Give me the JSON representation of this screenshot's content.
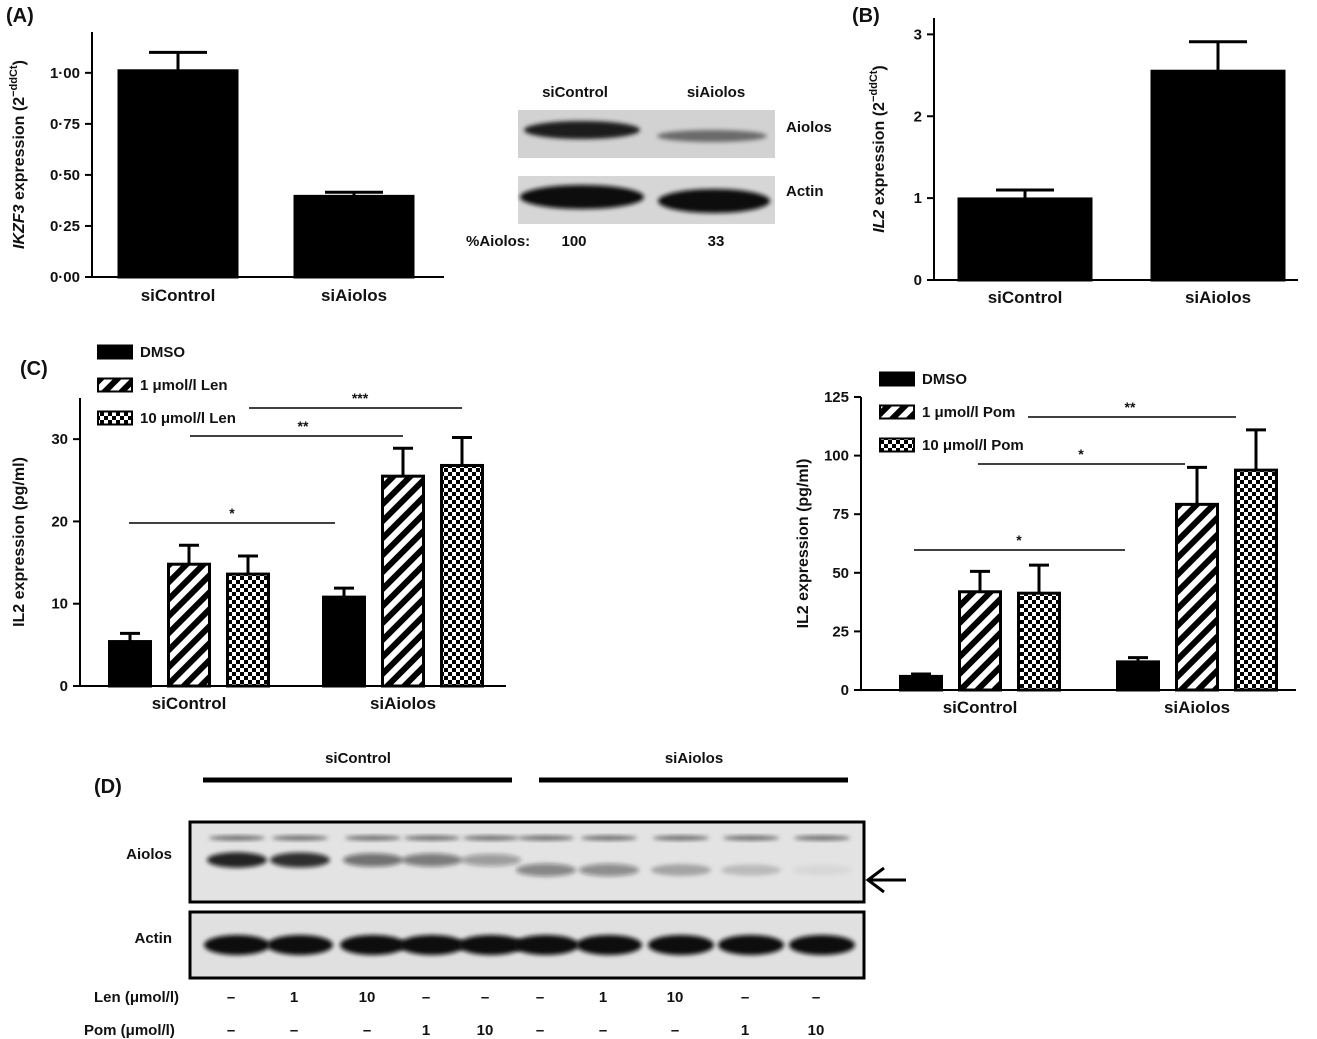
{
  "panels": {
    "A": "(A)",
    "B": "(B)",
    "C": "(C)",
    "D": "(D)"
  },
  "chart_data": [
    {
      "id": "A",
      "type": "bar",
      "ylabel_italic": "IKZF3",
      "ylabel_rest": " expression (2",
      "ylabel_sup": "−ddCt",
      "ylabel_close": ")",
      "ylim": [
        0,
        1.2
      ],
      "yticks": [
        "0·00",
        "0·25",
        "0·50",
        "0·75",
        "1·00"
      ],
      "ytick_values": [
        0,
        0.25,
        0.5,
        0.75,
        1.0
      ],
      "categories": [
        "siControl",
        "siAiolos"
      ],
      "values": [
        1.01,
        0.395
      ],
      "errors": [
        0.09,
        0.02
      ]
    },
    {
      "id": "B",
      "type": "bar",
      "ylabel_italic": "IL2",
      "ylabel_rest": " expression  (2",
      "ylabel_sup": "−ddCt",
      "ylabel_close": ")",
      "ylim": [
        0,
        3.2
      ],
      "yticks": [
        "0",
        "1",
        "2",
        "3"
      ],
      "ytick_values": [
        0,
        1,
        2,
        3
      ],
      "categories": [
        "siControl",
        "siAiolos"
      ],
      "values": [
        0.99,
        2.55
      ],
      "errors": [
        0.11,
        0.36
      ]
    },
    {
      "id": "C-len",
      "type": "bar",
      "ylabel": "IL2 expression (pg/ml)",
      "ylim": [
        0,
        35
      ],
      "yticks": [
        "0",
        "10",
        "20",
        "30"
      ],
      "ytick_values": [
        0,
        10,
        20,
        30
      ],
      "categories": [
        "siControl",
        "siAiolos"
      ],
      "legend": [
        "DMSO",
        "1 μmol/l Len",
        "10 μmol/l Len"
      ],
      "series": [
        {
          "name": "DMSO",
          "pattern": "solid",
          "values": [
            5.4,
            10.8
          ],
          "errors": [
            1.0,
            1.1
          ]
        },
        {
          "name": "1 μmol/l Len",
          "pattern": "hatch",
          "values": [
            14.8,
            25.5
          ],
          "errors": [
            2.3,
            3.4
          ]
        },
        {
          "name": "10 μmol/l Len",
          "pattern": "checker",
          "values": [
            13.6,
            26.8
          ],
          "errors": [
            2.2,
            3.4
          ]
        }
      ],
      "significance": [
        "*",
        "**",
        "***"
      ]
    },
    {
      "id": "C-pom",
      "type": "bar",
      "ylabel": "IL2 expression (pg/ml)",
      "ylim": [
        0,
        125
      ],
      "yticks": [
        "0",
        "25",
        "50",
        "75",
        "100",
        "125"
      ],
      "ytick_values": [
        0,
        25,
        50,
        75,
        100,
        125
      ],
      "categories": [
        "siControl",
        "siAiolos"
      ],
      "legend": [
        "DMSO",
        "1 μmol/l Pom",
        "10 μmol/l Pom"
      ],
      "series": [
        {
          "name": "DMSO",
          "pattern": "solid",
          "values": [
            5.8,
            12.0
          ],
          "errors": [
            1.0,
            1.8
          ]
        },
        {
          "name": "1 μmol/l Pom",
          "pattern": "hatch",
          "values": [
            41.9,
            79.2
          ],
          "errors": [
            8.7,
            15.8
          ]
        },
        {
          "name": "10 μmol/l Pom",
          "pattern": "checker",
          "values": [
            41.3,
            93.8
          ],
          "errors": [
            12.0,
            17.2
          ]
        }
      ],
      "significance": [
        "*",
        "*",
        "**"
      ]
    }
  ],
  "blot_a": {
    "lanes": [
      "siControl",
      "siAiolos"
    ],
    "bands": [
      "Aiolos",
      "Actin"
    ],
    "pct_label": "%Aiolos:",
    "pct_values": [
      "100",
      "33"
    ]
  },
  "blot_d": {
    "groups": [
      "siControl",
      "siAiolos"
    ],
    "bands": [
      "Aiolos",
      "Actin"
    ],
    "len_label": "Len (μmol/l)",
    "pom_label": "Pom (μmol/l)",
    "len_values": [
      "–",
      "1",
      "10",
      "–",
      "–",
      "–",
      "1",
      "10",
      "–",
      "–"
    ],
    "pom_values": [
      "–",
      "–",
      "–",
      "1",
      "10",
      "–",
      "–",
      "–",
      "1",
      "10"
    ],
    "aiolos_intensity": [
      0.9,
      0.85,
      0.55,
      0.5,
      0.35,
      0.45,
      0.42,
      0.28,
      0.18,
      0.05
    ]
  }
}
